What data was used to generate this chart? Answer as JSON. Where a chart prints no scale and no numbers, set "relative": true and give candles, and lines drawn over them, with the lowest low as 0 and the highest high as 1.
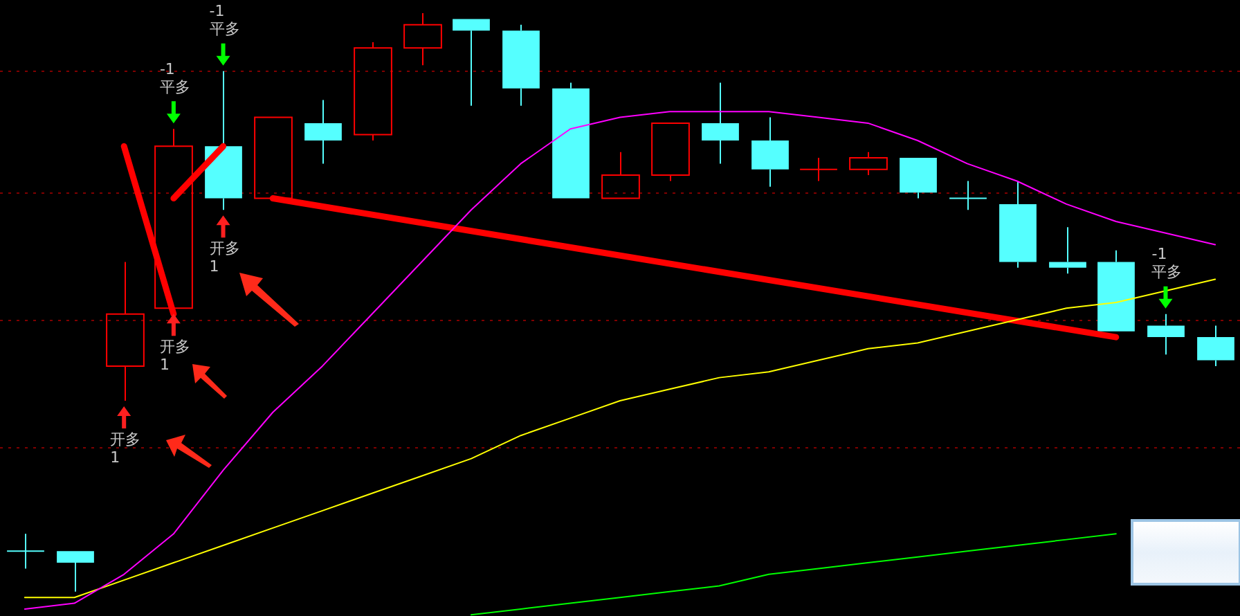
{
  "chart_data": {
    "type": "candlestick",
    "relative": true,
    "categories": [
      null,
      null,
      null,
      null,
      null,
      null,
      null,
      null,
      null,
      null,
      null,
      null,
      null,
      null,
      null,
      null,
      null,
      null,
      null,
      null,
      null,
      null,
      null,
      null,
      null
    ],
    "ohlc": [
      [
        0.07,
        0.1,
        0.04,
        0.07
      ],
      [
        0.07,
        0.07,
        0,
        0.05
      ],
      [
        0.39,
        0.57,
        0.33,
        0.48
      ],
      [
        0.49,
        0.8,
        0.49,
        0.77
      ],
      [
        0.77,
        0.9,
        0.66,
        0.68
      ],
      [
        0.68,
        0.82,
        0.68,
        0.82
      ],
      [
        0.81,
        0.85,
        0.74,
        0.78
      ],
      [
        0.79,
        0.95,
        0.78,
        0.94
      ],
      [
        0.94,
        1,
        0.91,
        0.98
      ],
      [
        0.99,
        0.99,
        0.84,
        0.97
      ],
      [
        0.97,
        0.98,
        0.84,
        0.87
      ],
      [
        0.87,
        0.88,
        0.68,
        0.68
      ],
      [
        0.68,
        0.76,
        0.68,
        0.72
      ],
      [
        0.72,
        0.81,
        0.71,
        0.81
      ],
      [
        0.81,
        0.88,
        0.74,
        0.78
      ],
      [
        0.78,
        0.82,
        0.7,
        0.73
      ],
      [
        0.73,
        0.75,
        0.71,
        0.73
      ],
      [
        0.73,
        0.76,
        0.72,
        0.75
      ],
      [
        0.75,
        0.75,
        0.68,
        0.69
      ],
      [
        0.68,
        0.71,
        0.66,
        0.68
      ],
      [
        0.67,
        0.71,
        0.56,
        0.57
      ],
      [
        0.57,
        0.63,
        0.55,
        0.56
      ],
      [
        0.57,
        0.59,
        0.45,
        0.45
      ],
      [
        0.46,
        0.48,
        0.41,
        0.44
      ],
      [
        0.44,
        0.46,
        0.39,
        0.4
      ]
    ],
    "colors": [
      "#55ffff",
      "#55ffff",
      "#ff0000",
      "#ff0000",
      "#55ffff",
      "#ff0000",
      "#55ffff",
      "#ff0000",
      "#ff0000",
      "#55ffff",
      "#55ffff",
      "#55ffff",
      "#ff0000",
      "#ff0000",
      "#55ffff",
      "#55ffff",
      "#ff0000",
      "#ff0000",
      "#55ffff",
      "#55ffff",
      "#55ffff",
      "#55ffff",
      "#55ffff",
      "#55ffff",
      "#55ffff"
    ],
    "series": [
      {
        "type": "line",
        "color": "#ff00ff",
        "values": [
          -0.03,
          -0.02,
          0.03,
          0.1,
          0.21,
          0.31,
          0.39,
          0.48,
          0.57,
          0.66,
          0.74,
          0.8,
          0.82,
          0.83,
          0.83,
          0.83,
          0.82,
          0.81,
          0.78,
          0.74,
          0.71,
          0.67,
          0.64,
          0.62,
          0.6
        ]
      },
      {
        "type": "line",
        "color": "#ffff00",
        "values": [
          -0.01,
          -0.01,
          0.02,
          0.05,
          0.08,
          0.11,
          0.14,
          0.17,
          0.2,
          0.23,
          0.27,
          0.3,
          0.33,
          0.35,
          0.37,
          0.38,
          0.4,
          0.42,
          0.43,
          0.45,
          0.47,
          0.49,
          0.5,
          null,
          0.54
        ]
      },
      {
        "type": "line",
        "color": "#00ff00",
        "values": [
          null,
          null,
          null,
          null,
          null,
          null,
          null,
          null,
          null,
          -0.04,
          -0.03,
          -0.02,
          -0.01,
          0,
          0.01,
          0.03,
          0.04,
          0.05,
          0.06,
          0.07,
          0.08,
          0.09,
          0.1,
          null,
          null
        ]
      },
      {
        "type": "line",
        "color": "#ff0000",
        "values": [
          null,
          null,
          0.77,
          0.48,
          null,
          null,
          null,
          null,
          null,
          null,
          null,
          null,
          null,
          null,
          null,
          null,
          null,
          null,
          null,
          null,
          null,
          null,
          null,
          null,
          null
        ]
      },
      {
        "type": "line",
        "color": "#ff0000",
        "values": [
          null,
          null,
          null,
          0.68,
          0.77,
          null,
          null,
          null,
          null,
          null,
          null,
          null,
          null,
          null,
          null,
          null,
          null,
          null,
          null,
          null,
          null,
          null,
          null,
          null,
          null
        ]
      },
      {
        "type": "line",
        "color": "#ff0000",
        "values": [
          null,
          null,
          null,
          null,
          null,
          0.68,
          null,
          null,
          null,
          null,
          null,
          null,
          null,
          null,
          null,
          null,
          null,
          null,
          null,
          null,
          null,
          null,
          0.44,
          null,
          null
        ]
      }
    ],
    "ref_lines": [
      {
        "axis": "y",
        "value": 0.9,
        "color": "#800000",
        "line_style": "dotted"
      },
      {
        "axis": "y",
        "value": 0.69,
        "color": "#800000",
        "line_style": "dotted"
      },
      {
        "axis": "y",
        "value": 0.47,
        "color": "#800000",
        "line_style": "dotted"
      },
      {
        "axis": "y",
        "value": 0.25,
        "color": "#800000",
        "line_style": "dotted"
      }
    ],
    "annotations": [
      {
        "text": "开多\n1",
        "y": 0.33
      },
      {
        "text": "开多\n1",
        "y": 0.49
      },
      {
        "text": "开多\n1",
        "y": 0.66
      },
      {
        "text": "-1\n平多",
        "y": 0.8
      },
      {
        "text": "-1\n平多",
        "y": 0.9
      },
      {
        "text": "-1\n平多",
        "y": 0.48
      }
    ]
  }
}
